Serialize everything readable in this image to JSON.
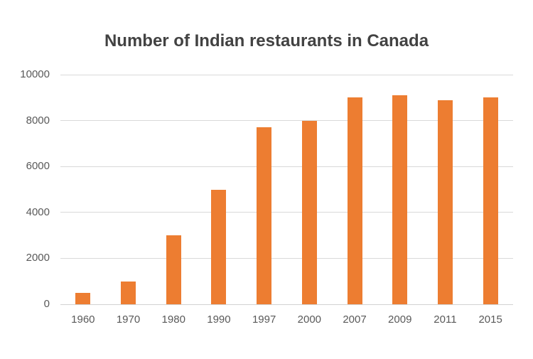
{
  "chart_data": {
    "type": "bar",
    "title": "Number of Indian restaurants in Canada",
    "categories": [
      "1960",
      "1970",
      "1980",
      "1990",
      "1997",
      "2000",
      "2007",
      "2009",
      "2011",
      "2015"
    ],
    "values": [
      500,
      1000,
      3000,
      5000,
      7700,
      8000,
      9000,
      9100,
      8900,
      9000
    ],
    "xlabel": "",
    "ylabel": "",
    "ylim": [
      0,
      10000
    ],
    "yticks": [
      0,
      2000,
      4000,
      6000,
      8000,
      10000
    ],
    "grid": true,
    "legend": false,
    "colors": {
      "bar": "#ED7D31",
      "gridline": "#D9D9D9",
      "axis_line": "#D2D2D2",
      "title": "#424242",
      "tick_label": "#595959",
      "background": "#FFFFFF"
    }
  }
}
